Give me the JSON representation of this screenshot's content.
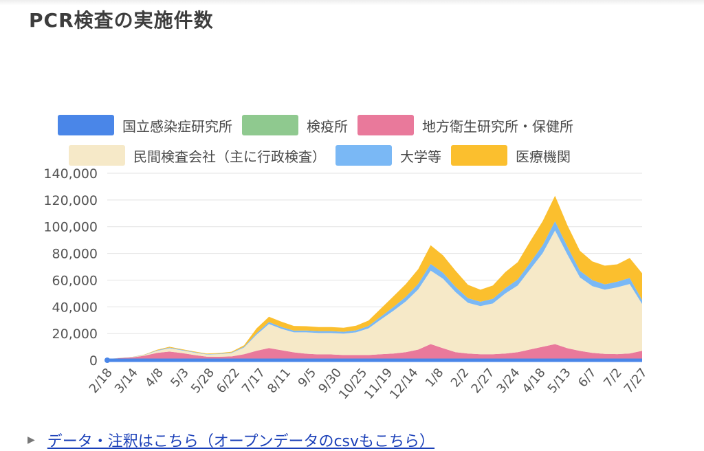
{
  "page": {
    "title": "PCR検査の実施件数",
    "link_text": "データ・注釈はこちら（オープンデータのcsvもこちら）",
    "link_icon": "triangle-right-icon"
  },
  "legend": [
    {
      "label": "国立感染症研究所",
      "color": "#4a86e8"
    },
    {
      "label": "検疫所",
      "color": "#8fc98f"
    },
    {
      "label": "地方衛生研究所・保健所",
      "color": "#e9799b"
    },
    {
      "label": "民間検査会社（主に行政検査）",
      "color": "#f6e9c8"
    },
    {
      "label": "大学等",
      "color": "#7ab8f5"
    },
    {
      "label": "医療機関",
      "color": "#fbbf2e"
    }
  ],
  "chart_data": {
    "type": "area",
    "stacked": true,
    "title": "PCR検査の実施件数",
    "xlabel": "",
    "ylabel": "",
    "ylim": [
      0,
      140000
    ],
    "y_ticks": [
      "0",
      "20,000",
      "40,000",
      "60,000",
      "80,000",
      "100,000",
      "120,000",
      "140,000"
    ],
    "x_tick_labels": [
      "2/18",
      "3/14",
      "4/8",
      "5/3",
      "5/28",
      "6/22",
      "7/17",
      "8/11",
      "9/5",
      "9/30",
      "10/25",
      "11/19",
      "12/14",
      "1/8",
      "2/2",
      "2/27",
      "3/24",
      "4/18",
      "5/13",
      "6/7",
      "7/2",
      "7/27"
    ],
    "grid": true,
    "legend_position": "top",
    "x": [
      "2/18",
      "3/1",
      "3/14",
      "3/27",
      "4/8",
      "4/20",
      "5/3",
      "5/15",
      "5/28",
      "6/10",
      "6/22",
      "7/5",
      "7/17",
      "7/30",
      "8/11",
      "8/24",
      "9/5",
      "9/18",
      "9/30",
      "10/13",
      "10/25",
      "11/7",
      "11/19",
      "12/2",
      "12/14",
      "12/27",
      "1/8",
      "1/21",
      "2/2",
      "2/15",
      "2/27",
      "3/12",
      "3/24",
      "4/6",
      "4/18",
      "5/1",
      "5/13",
      "5/26",
      "6/7",
      "6/20",
      "7/2",
      "7/15",
      "7/27",
      "8/3"
    ],
    "series": [
      {
        "name": "国立感染症研究所",
        "values": [
          300,
          300,
          300,
          300,
          300,
          300,
          300,
          300,
          300,
          300,
          300,
          300,
          300,
          300,
          300,
          300,
          300,
          300,
          300,
          300,
          300,
          300,
          300,
          300,
          300,
          300,
          300,
          300,
          300,
          300,
          300,
          300,
          300,
          300,
          300,
          300,
          300,
          300,
          300,
          300,
          300,
          300,
          300,
          300
        ]
      },
      {
        "name": "検疫所",
        "values": [
          0,
          100,
          300,
          600,
          700,
          700,
          600,
          600,
          600,
          500,
          600,
          700,
          800,
          800,
          700,
          600,
          600,
          600,
          600,
          600,
          600,
          600,
          700,
          700,
          700,
          700,
          800,
          700,
          700,
          700,
          700,
          700,
          700,
          700,
          800,
          800,
          800,
          700,
          700,
          700,
          700,
          800,
          800,
          800
        ]
      },
      {
        "name": "地方衛生研究所・保健所",
        "values": [
          500,
          1200,
          1500,
          2500,
          4500,
          5500,
          4500,
          3000,
          1800,
          1800,
          2000,
          3500,
          6000,
          8000,
          6500,
          5000,
          4000,
          3500,
          3500,
          3000,
          3000,
          3000,
          3500,
          4000,
          5000,
          7000,
          11000,
          8000,
          5000,
          4000,
          3500,
          3500,
          4000,
          5000,
          7000,
          9000,
          11000,
          8000,
          6000,
          4500,
          3800,
          3500,
          4000,
          6000
        ]
      },
      {
        "name": "民間検査会社（主に行政検査）",
        "values": [
          0,
          100,
          200,
          500,
          1500,
          2500,
          2000,
          1800,
          1600,
          2000,
          2500,
          5000,
          12000,
          18000,
          16000,
          15000,
          16000,
          16000,
          16000,
          16000,
          17000,
          20000,
          26000,
          32000,
          38000,
          45000,
          55000,
          52000,
          45000,
          38000,
          36000,
          38000,
          45000,
          50000,
          60000,
          70000,
          85000,
          70000,
          55000,
          50000,
          48000,
          50000,
          52000,
          35000
        ]
      },
      {
        "name": "大学等",
        "values": [
          0,
          50,
          100,
          200,
          400,
          500,
          400,
          400,
          300,
          300,
          400,
          700,
          1200,
          1500,
          1400,
          1300,
          1400,
          1400,
          1400,
          1400,
          1500,
          1800,
          2200,
          2800,
          3500,
          4200,
          5000,
          4500,
          4000,
          3500,
          3300,
          3500,
          4000,
          4500,
          5000,
          6000,
          7000,
          6000,
          5000,
          4500,
          4000,
          4200,
          4500,
          3000
        ]
      },
      {
        "name": "医療機関",
        "values": [
          0,
          50,
          100,
          200,
          400,
          600,
          500,
          500,
          400,
          500,
          600,
          1000,
          3500,
          4000,
          4000,
          3500,
          3200,
          3000,
          3000,
          3000,
          3500,
          4000,
          6000,
          8000,
          9500,
          11000,
          14000,
          13000,
          12000,
          10000,
          9000,
          10000,
          12000,
          13000,
          16000,
          18000,
          19000,
          16000,
          15000,
          14000,
          14000,
          13000,
          15000,
          20000
        ]
      }
    ]
  }
}
